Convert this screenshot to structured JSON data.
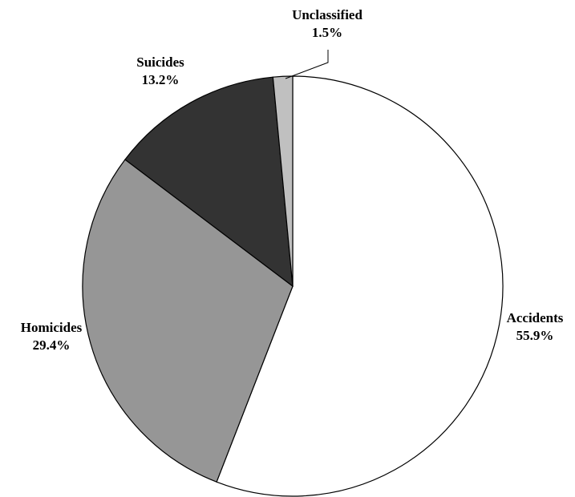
{
  "chart_data": {
    "type": "pie",
    "title": "",
    "slices": [
      {
        "name": "Accidents",
        "value": 55.9,
        "display": "55.9%",
        "color": "#ffffff"
      },
      {
        "name": "Homicides",
        "value": 29.4,
        "display": "29.4%",
        "color": "#969696"
      },
      {
        "name": "Suicides",
        "value": 13.2,
        "display": "13.2%",
        "color": "#333333"
      },
      {
        "name": "Unclassified",
        "value": 1.5,
        "display": "1.5%",
        "color": "#c0c0c0"
      }
    ],
    "start_position": "top",
    "direction": "clockwise",
    "legend": "none"
  }
}
